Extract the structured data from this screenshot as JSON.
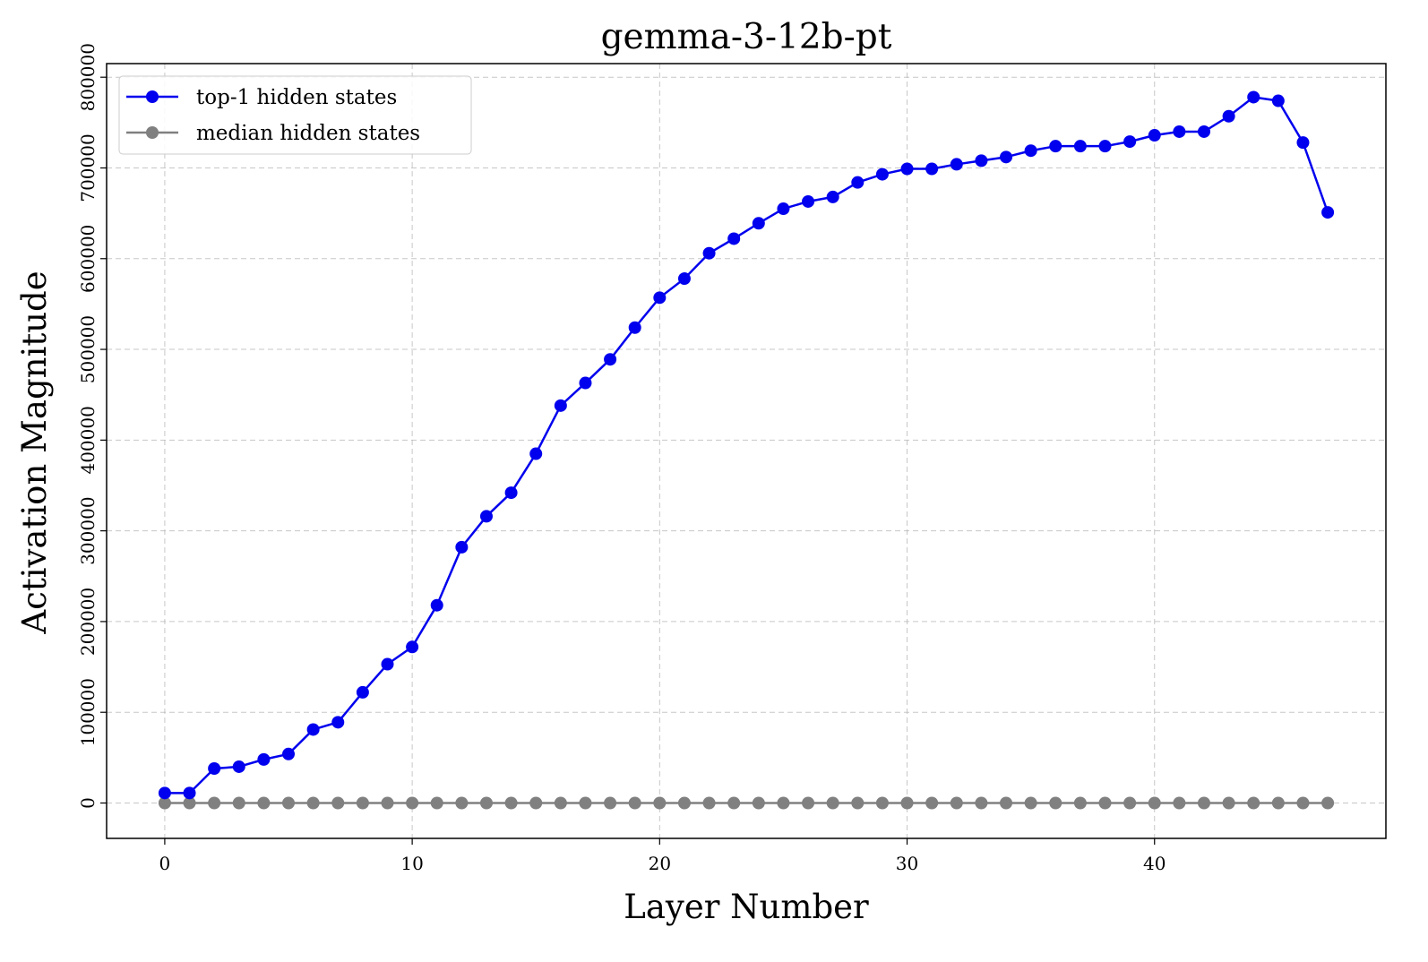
{
  "chart_data": {
    "type": "line",
    "title": "gemma-3-12b-pt",
    "xlabel": "Layer Number",
    "ylabel": "Activation Magnitude",
    "x": [
      0,
      1,
      2,
      3,
      4,
      5,
      6,
      7,
      8,
      9,
      10,
      11,
      12,
      13,
      14,
      15,
      16,
      17,
      18,
      19,
      20,
      21,
      22,
      23,
      24,
      25,
      26,
      27,
      28,
      29,
      30,
      31,
      32,
      33,
      34,
      35,
      36,
      37,
      38,
      39,
      40,
      41,
      42,
      43,
      44,
      45,
      46,
      47
    ],
    "xlim": [
      -2.35,
      49.35
    ],
    "ylim": [
      -39000,
      815000
    ],
    "xticks": [
      0,
      10,
      20,
      30,
      40
    ],
    "xtick_labels": [
      "0",
      "10",
      "20",
      "30",
      "40"
    ],
    "yticks": [
      0,
      100000,
      200000,
      300000,
      400000,
      500000,
      600000,
      700000,
      800000
    ],
    "ytick_labels": [
      "0",
      "100000",
      "200000",
      "300000",
      "400000",
      "500000",
      "600000",
      "700000",
      "800000"
    ],
    "grid": true,
    "legend_position": "upper left",
    "series": [
      {
        "name": "top-1 hidden states",
        "color": "#0000ee",
        "marker": "circle",
        "values": [
          11000,
          11000,
          38000,
          40000,
          48000,
          54000,
          81000,
          89000,
          122000,
          153000,
          172000,
          218000,
          282000,
          316000,
          342000,
          385000,
          438000,
          463000,
          489000,
          524000,
          557000,
          578000,
          606000,
          622000,
          639000,
          655000,
          663000,
          668000,
          684000,
          693000,
          699000,
          699000,
          704000,
          708000,
          712000,
          719000,
          724000,
          724000,
          724000,
          729000,
          736000,
          740000,
          740000,
          757000,
          778000,
          774000,
          728000,
          651000
        ]
      },
      {
        "name": "median hidden states",
        "color": "#808080",
        "marker": "circle",
        "values": [
          0,
          0,
          0,
          0,
          0,
          0,
          0,
          0,
          0,
          0,
          0,
          0,
          0,
          0,
          0,
          0,
          0,
          0,
          0,
          0,
          0,
          0,
          0,
          0,
          0,
          0,
          0,
          0,
          0,
          0,
          0,
          0,
          0,
          0,
          0,
          0,
          0,
          0,
          0,
          0,
          0,
          0,
          0,
          0,
          0,
          0,
          0,
          0
        ]
      }
    ]
  }
}
